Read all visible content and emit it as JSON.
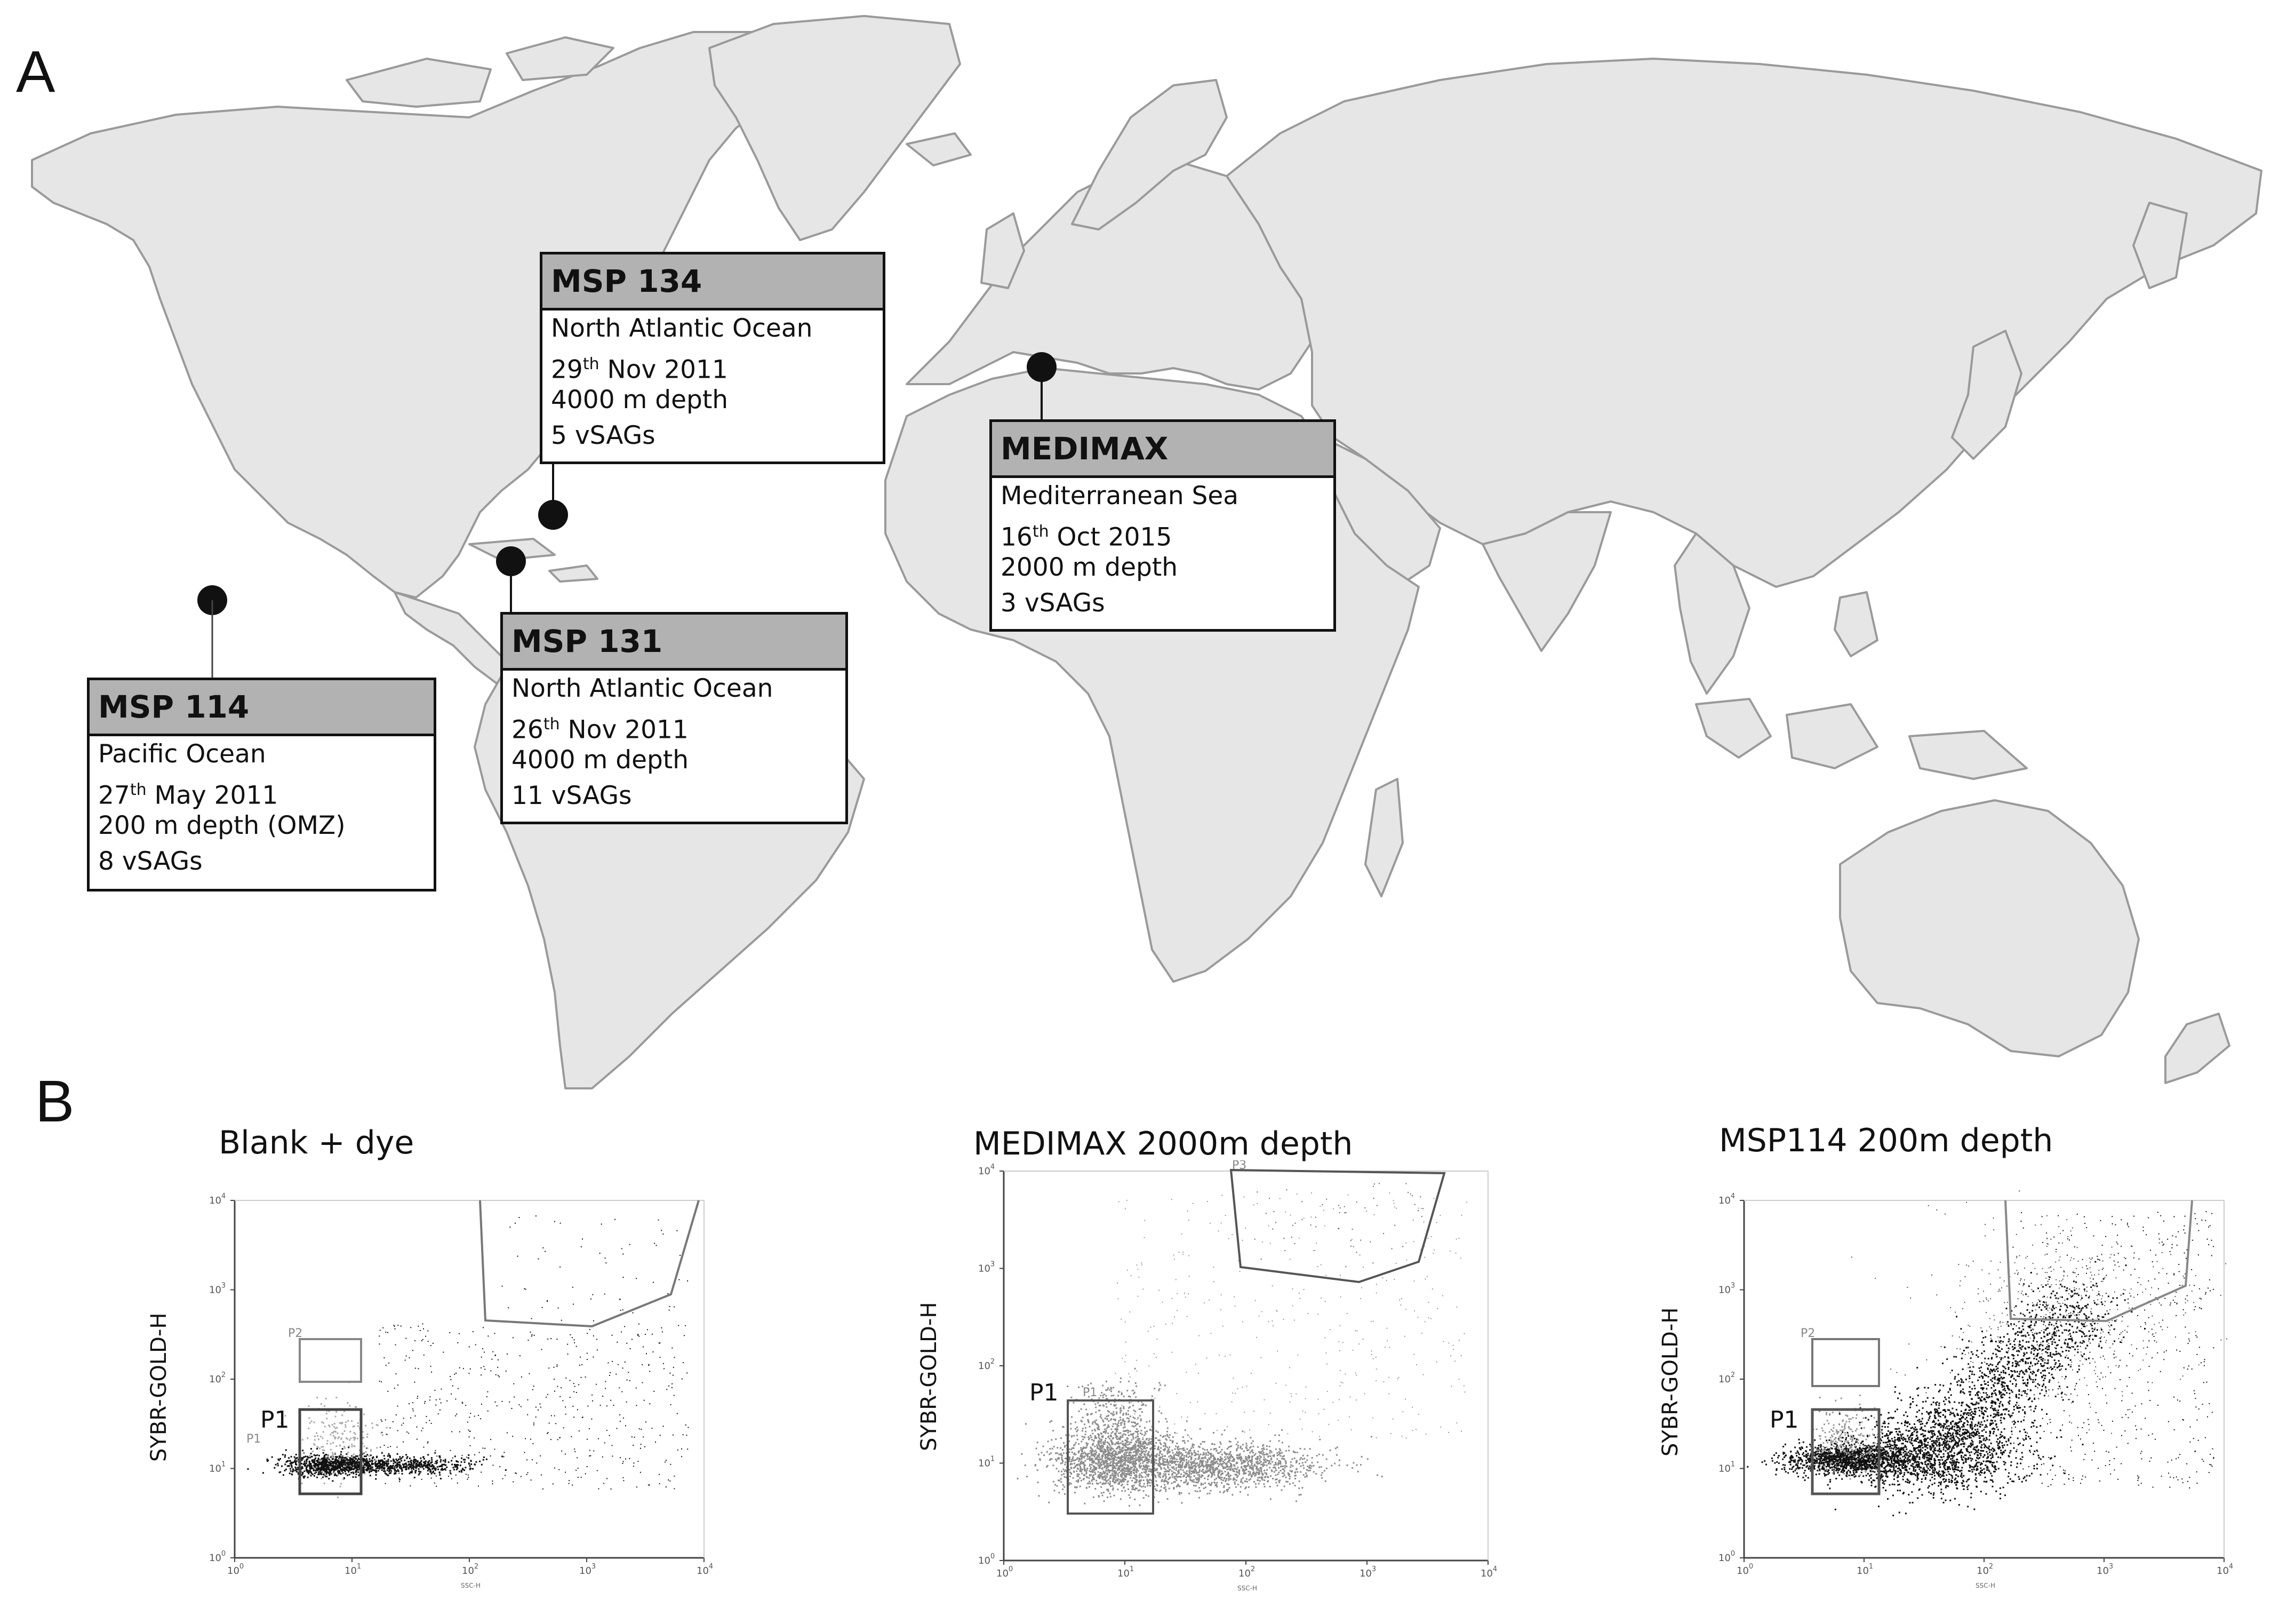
{
  "panel_a": {
    "letter": "A"
  },
  "panel_b": {
    "letter": "B"
  },
  "sites": [
    {
      "id": "msp134",
      "name": "MSP 134",
      "ocean": "North Atlantic Ocean",
      "day": "29",
      "day_suffix": "th",
      "date_rest": " Nov 2011",
      "depth": "4000 m depth",
      "vsags": "5 vSAGs"
    },
    {
      "id": "medimax",
      "name": "MEDIMAX",
      "ocean": "Mediterranean Sea",
      "day": "16",
      "day_suffix": "th",
      "date_rest": " Oct 2015",
      "depth": "2000 m depth",
      "vsags": "3 vSAGs"
    },
    {
      "id": "msp131",
      "name": "MSP 131",
      "ocean": "North Atlantic Ocean",
      "day": "26",
      "day_suffix": "th",
      "date_rest": " Nov 2011",
      "depth": "4000 m depth",
      "vsags": "11 vSAGs"
    },
    {
      "id": "msp114",
      "name": "MSP 114",
      "ocean": "Pacific Ocean",
      "day": "27",
      "day_suffix": "th",
      "date_rest": " May 2011",
      "depth": "200 m depth (OMZ)",
      "vsags": "8 vSAGs"
    }
  ],
  "colors": {
    "land": "#e6e6e6",
    "coast": "#9a9a9a",
    "header": "#b2b2b2",
    "events_dark": "#111111",
    "events_gray": "#8c8c8c"
  },
  "plots": [
    {
      "id": "blank",
      "title": "Blank + dye",
      "ylabel": "SYBR-GOLD-H",
      "xlabel": "SSC-H",
      "gate_main": "P1",
      "gate_small_1": "P1",
      "gate_small_2": "P2",
      "point_color": "events_dark"
    },
    {
      "id": "medimax",
      "title": "MEDIMAX   2000m depth",
      "ylabel": "SYBR-GOLD-H",
      "xlabel": "SSC-H",
      "gate_main": "P1",
      "gate_small_1": "P1",
      "gate_small_2": "P3",
      "point_color": "events_gray"
    },
    {
      "id": "msp114",
      "title": "MSP114   200m depth",
      "ylabel": "SYBR-GOLD-H",
      "xlabel": "SSC-H",
      "gate_main": "P1",
      "gate_small_1": "P2",
      "point_color": "events_dark"
    }
  ],
  "axis_ticks": {
    "y": [
      "10",
      "10",
      "10",
      "10",
      "10"
    ],
    "y_exp": [
      "0",
      "1",
      "2",
      "3",
      "4"
    ],
    "x": [
      "10",
      "10",
      "10",
      "10",
      "10"
    ],
    "x_exp": [
      "0",
      "1",
      "2",
      "3",
      "4"
    ]
  }
}
